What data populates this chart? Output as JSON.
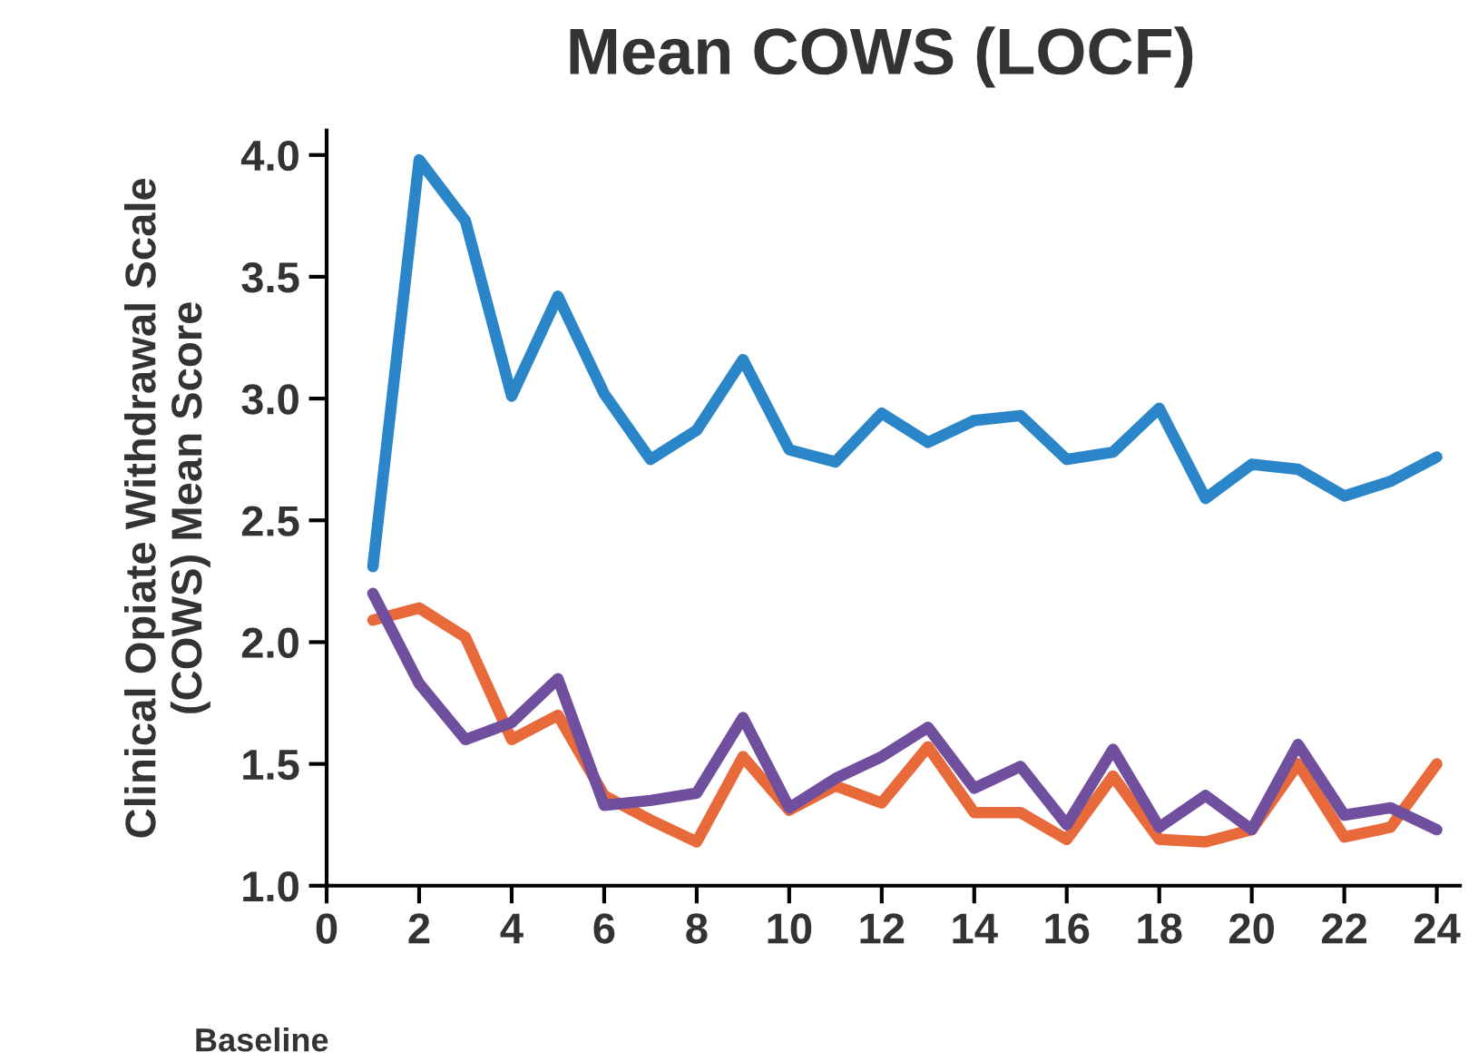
{
  "chart_data": {
    "type": "line",
    "title": "Mean COWS (LOCF)",
    "ylabel": "Clinical Opiate Withdrawal Scale\n(COWS) Mean Score",
    "x": [
      1,
      2,
      3,
      4,
      5,
      6,
      7,
      8,
      9,
      10,
      11,
      12,
      13,
      14,
      15,
      16,
      17,
      18,
      19,
      20,
      21,
      22,
      23,
      24
    ],
    "series": [
      {
        "color": "#2a86c8",
        "values": [
          2.31,
          3.98,
          3.73,
          3.01,
          3.42,
          3.02,
          2.75,
          2.87,
          3.16,
          2.79,
          2.74,
          2.94,
          2.82,
          2.91,
          2.93,
          2.75,
          2.78,
          2.96,
          2.59,
          2.73,
          2.71,
          2.6,
          2.66,
          2.76
        ]
      },
      {
        "color": "#e8693a",
        "values": [
          2.09,
          2.14,
          2.02,
          1.6,
          1.7,
          1.37,
          1.27,
          1.18,
          1.53,
          1.31,
          1.41,
          1.34,
          1.57,
          1.3,
          1.3,
          1.19,
          1.45,
          1.19,
          1.18,
          1.23,
          1.5,
          1.2,
          1.24,
          1.5
        ]
      },
      {
        "color": "#6f4f9e",
        "values": [
          2.2,
          1.83,
          1.6,
          1.67,
          1.85,
          1.33,
          1.35,
          1.38,
          1.69,
          1.32,
          1.44,
          1.53,
          1.65,
          1.4,
          1.49,
          1.25,
          1.56,
          1.24,
          1.37,
          1.23,
          1.58,
          1.29,
          1.32,
          1.23
        ]
      }
    ],
    "xlim": [
      0,
      24.5
    ],
    "xticks": [
      0,
      2,
      4,
      6,
      8,
      10,
      12,
      14,
      16,
      18,
      20,
      22,
      24
    ],
    "ylim": [
      1.0,
      4.1
    ],
    "yticks": [
      {
        "value": 1.0,
        "label": "1.0"
      },
      {
        "value": 1.5,
        "label": "1.5"
      },
      {
        "value": 2.0,
        "label": "2.0"
      },
      {
        "value": 2.5,
        "label": "2.5"
      },
      {
        "value": 3.0,
        "label": "3.0"
      },
      {
        "value": 3.5,
        "label": "3.5"
      },
      {
        "value": 4.0,
        "label": "4.0"
      }
    ],
    "annotations": [
      "Baseline"
    ],
    "grid": false,
    "legend": false,
    "marker": "none",
    "line_style": "solid"
  }
}
